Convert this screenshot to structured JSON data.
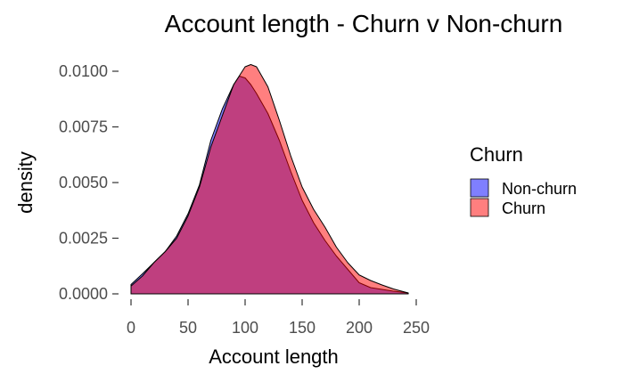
{
  "chart_data": {
    "type": "area",
    "title": "Account length - Churn v Non-churn",
    "xlabel": "Account length",
    "ylabel": "density",
    "xlim": [
      0,
      245
    ],
    "ylim": [
      0,
      0.0102
    ],
    "x_ticks": [
      0,
      50,
      100,
      150,
      200,
      250
    ],
    "x_tick_labels": [
      "0",
      "50",
      "100",
      "150",
      "200",
      "250"
    ],
    "y_ticks": [
      0,
      0.0025,
      0.005,
      0.0075,
      0.01
    ],
    "y_tick_labels": [
      "0.0000",
      "0.0025",
      "0.0050",
      "0.0075",
      "0.0100"
    ],
    "grid": false,
    "legend": {
      "title": "Churn",
      "position": "right"
    },
    "series": [
      {
        "name": "Non-churn",
        "color": "#0000ff",
        "x": [
          0,
          10,
          20,
          30,
          40,
          50,
          60,
          70,
          80,
          90,
          95,
          100,
          105,
          110,
          120,
          130,
          140,
          150,
          160,
          170,
          180,
          190,
          200,
          210,
          220,
          230,
          243
        ],
        "y": [
          0.00042,
          0.0009,
          0.0014,
          0.0019,
          0.0026,
          0.0036,
          0.0049,
          0.0069,
          0.0083,
          0.0094,
          0.00978,
          0.0097,
          0.0094,
          0.009,
          0.0081,
          0.0069,
          0.0055,
          0.0042,
          0.0032,
          0.0024,
          0.0017,
          0.0011,
          0.0005,
          0.00028,
          0.0002,
          0.00012,
          4e-05
        ]
      },
      {
        "name": "Churn",
        "color": "#ff0000",
        "x": [
          0,
          10,
          20,
          30,
          40,
          50,
          60,
          70,
          80,
          90,
          100,
          105,
          110,
          120,
          130,
          140,
          150,
          160,
          170,
          180,
          190,
          200,
          210,
          220,
          230,
          243
        ],
        "y": [
          0.00035,
          0.0008,
          0.0014,
          0.0019,
          0.0025,
          0.0035,
          0.0048,
          0.0066,
          0.008,
          0.0094,
          0.0102,
          0.0103,
          0.0102,
          0.0093,
          0.0078,
          0.0062,
          0.0048,
          0.0038,
          0.003,
          0.0021,
          0.0014,
          0.00085,
          0.0006,
          0.0004,
          0.00022,
          4e-05
        ]
      }
    ]
  }
}
